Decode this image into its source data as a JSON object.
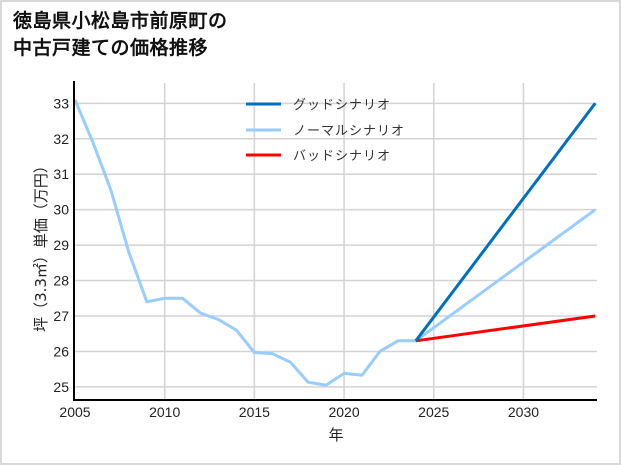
{
  "header": {
    "title_line1": "徳島県小松島市前原町の",
    "title_line2": "中古戸建ての価格推移"
  },
  "colors": {
    "good": "#0070c0",
    "normal": "#99ccff",
    "bad": "#ff0000",
    "grid": "#d3d3d3",
    "axis": "#000000",
    "frame": "#d9d9d9"
  },
  "chart_data": {
    "type": "line",
    "title": "徳島県小松島市前原町の中古戸建ての価格推移",
    "xlabel": "年",
    "ylabel": "坪（3.3㎡）単価（万円）",
    "xlim": [
      2005,
      2034.1
    ],
    "ylim": [
      24.63,
      33.63
    ],
    "grid": true,
    "legend_position": "upper center (inside plot)",
    "x_ticks": [
      2005,
      2010,
      2015,
      2020,
      2025,
      2030
    ],
    "y_ticks": [
      25,
      26,
      27,
      28,
      29,
      30,
      31,
      32,
      33
    ],
    "series": [
      {
        "name": "グッドシナリオ",
        "color": "#0070c0",
        "x": [
          2024,
          2034
        ],
        "values": [
          26.3,
          33.0
        ]
      },
      {
        "name": "ノーマルシナリオ",
        "color": "#99ccff",
        "x": [
          2005,
          2006,
          2007,
          2008,
          2009,
          2010,
          2011,
          2012,
          2013,
          2014,
          2015,
          2016,
          2017,
          2018,
          2019,
          2020,
          2021,
          2022,
          2023,
          2024,
          2034
        ],
        "values": [
          33.1,
          31.9,
          30.55,
          28.8,
          27.4,
          27.5,
          27.5,
          27.08,
          26.9,
          26.6,
          25.97,
          25.94,
          25.7,
          25.13,
          25.05,
          25.38,
          25.33,
          26.0,
          26.3,
          26.3,
          30.0
        ]
      },
      {
        "name": "バッドシナリオ",
        "color": "#ff0000",
        "x": [
          2024,
          2034
        ],
        "values": [
          26.3,
          27.0
        ]
      }
    ]
  }
}
